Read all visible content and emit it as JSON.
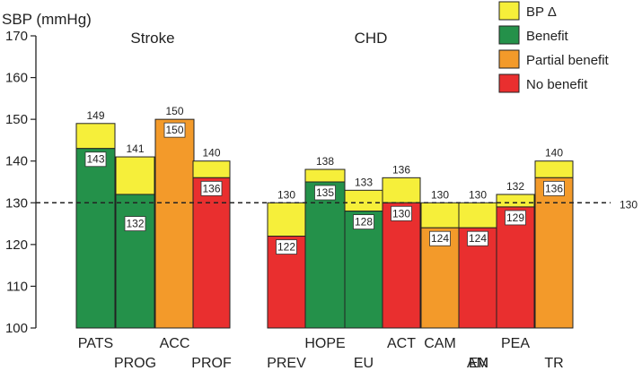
{
  "chart_data": {
    "type": "bar",
    "ylabel": "SBP (mmHg)",
    "ylim": [
      100,
      170
    ],
    "yticks": [
      100,
      110,
      120,
      130,
      140,
      150,
      160,
      170
    ],
    "reference_line": {
      "value": 130,
      "label": "130"
    },
    "groups": [
      {
        "label": "Stroke",
        "categories": [
          "PATS",
          "PROG",
          "ACC",
          "PROF"
        ]
      },
      {
        "label": "CHD",
        "categories": [
          "PREV",
          "HOPE",
          "EU",
          "ACT",
          "CAM AM",
          "CAM EN",
          "PEA",
          "TR"
        ]
      }
    ],
    "bars": [
      {
        "label": "PATS",
        "label_row": "top",
        "control": 149,
        "treated": 143,
        "outcome": "Benefit",
        "top_text": "149",
        "inner_text": "143",
        "inner_anchor": "top"
      },
      {
        "label": "PROG",
        "label_row": "bottom",
        "control": 141,
        "treated": 132,
        "outcome": "Benefit",
        "top_text": "141",
        "inner_text": "132",
        "inner_anchor": "below_ref"
      },
      {
        "label": "ACC",
        "label_row": "top",
        "control": 150,
        "treated": 150,
        "outcome": "Partial benefit",
        "top_text": "150",
        "inner_text": "150",
        "inner_anchor": "top"
      },
      {
        "label": "PROF",
        "label_row": "bottom",
        "control": 140,
        "treated": 136,
        "outcome": "No benefit",
        "top_text": "140",
        "inner_text": "136",
        "inner_anchor": "top"
      },
      {
        "label": "PREV",
        "label_row": "bottom",
        "control": 130,
        "treated": 122,
        "outcome": "No benefit",
        "top_text": "130",
        "inner_text": "122",
        "inner_anchor": "top"
      },
      {
        "label": "HOPE",
        "label_row": "top",
        "control": 138,
        "treated": 135,
        "outcome": "Benefit",
        "top_text": "138",
        "inner_text": "135",
        "inner_anchor": "top"
      },
      {
        "label": "EU",
        "label_row": "bottom",
        "control": 133,
        "treated": 128,
        "outcome": "Benefit",
        "top_text": "133",
        "inner_text": "128",
        "inner_anchor": "top"
      },
      {
        "label": "ACT",
        "label_row": "top",
        "control": 136,
        "treated": 130,
        "outcome": "No benefit",
        "top_text": "136",
        "inner_text": "130",
        "inner_anchor": "top"
      },
      {
        "label": "CAM",
        "label_row": "top",
        "control": 130,
        "treated": 124,
        "outcome": "Partial benefit",
        "top_text": "130",
        "inner_text": "124",
        "inner_anchor": "top"
      },
      {
        "label": "AM",
        "label_row": "bottom",
        "control": 130,
        "treated": 124,
        "outcome": "No benefit",
        "top_text": "130",
        "inner_text": "124",
        "inner_anchor": "top"
      },
      {
        "label": "PEA",
        "label_row": "top",
        "control": 132,
        "treated": 129,
        "outcome": "No benefit",
        "top_text": "132",
        "inner_text": "129",
        "inner_anchor": "top"
      },
      {
        "label": "TR",
        "label_row": "bottom",
        "control": 140,
        "treated": 136,
        "outcome": "Partial benefit",
        "top_text": "140",
        "inner_text": "136",
        "inner_anchor": "top"
      }
    ],
    "extra_labels": [
      {
        "text": "EN",
        "label_row": "bottom"
      }
    ],
    "legend": {
      "placement": "top-right",
      "items": [
        {
          "label": "BP Δ",
          "color": "#f6ef3a"
        },
        {
          "label": "Benefit",
          "color": "#24914a"
        },
        {
          "label": "Partial benefit",
          "color": "#f39a2a"
        },
        {
          "label": "No benefit",
          "color": "#e92f2f"
        }
      ]
    },
    "colors": {
      "bp_delta": "#f6ef3a",
      "Benefit": "#24914a",
      "Partial benefit": "#f39a2a",
      "No benefit": "#e92f2f",
      "axis": "#222222"
    },
    "grid": false
  }
}
